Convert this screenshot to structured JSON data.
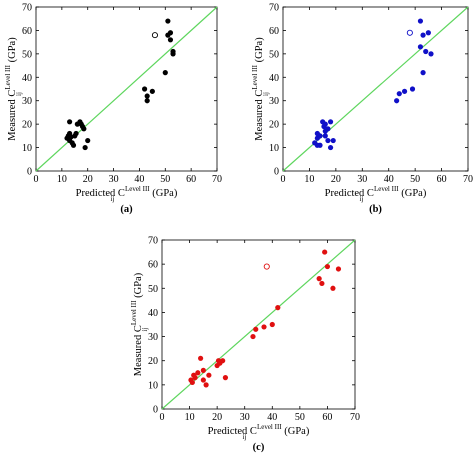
{
  "chart_data": [
    {
      "type": "scatter",
      "panel_label": "(a)",
      "xlabel": {
        "main": "Predicted C",
        "sub": "ij",
        "sup": "Level III",
        "unit": " (GPa)"
      },
      "ylabel": {
        "main": "Measured C",
        "sub": "ij",
        "sup": "Level III",
        "unit": " (GPa)"
      },
      "xlim": [
        0,
        70
      ],
      "ylim": [
        0,
        70
      ],
      "xticks": [
        "0",
        "10",
        "20",
        "30",
        "40",
        "50",
        "60",
        "70"
      ],
      "yticks": [
        "0",
        "10",
        "20",
        "30",
        "40",
        "50",
        "60",
        "70"
      ],
      "grid": false,
      "point_color": "#000000",
      "line_color": "#5ed65e",
      "points": [
        [
          12,
          14
        ],
        [
          12.5,
          15
        ],
        [
          13,
          13
        ],
        [
          13,
          16
        ],
        [
          13.5,
          14.5
        ],
        [
          14,
          12
        ],
        [
          14.5,
          11
        ],
        [
          15,
          15
        ],
        [
          15.5,
          16
        ],
        [
          16,
          20
        ],
        [
          17,
          21
        ],
        [
          17.5,
          20
        ],
        [
          18,
          19
        ],
        [
          18.5,
          18
        ],
        [
          19,
          10
        ],
        [
          20,
          13
        ],
        [
          13,
          21
        ],
        [
          43,
          30
        ],
        [
          43,
          32
        ],
        [
          42,
          35
        ],
        [
          45,
          34
        ],
        [
          50,
          42
        ],
        [
          51,
          64
        ],
        [
          51,
          58
        ],
        [
          52,
          56
        ],
        [
          52,
          59
        ],
        [
          53,
          50
        ],
        [
          53,
          51
        ]
      ],
      "outliers": [
        [
          46,
          58
        ]
      ],
      "identity_line": [
        [
          0,
          0
        ],
        [
          70,
          70
        ]
      ]
    },
    {
      "type": "scatter",
      "panel_label": "(b)",
      "xlabel": {
        "main": "Predicted C",
        "sub": "ij",
        "sup": "Level III",
        "unit": " (GPa)"
      },
      "ylabel": {
        "main": "Measured C",
        "sub": "ij",
        "sup": "Level III",
        "unit": " (GPa)"
      },
      "xlim": [
        0,
        70
      ],
      "ylim": [
        0,
        70
      ],
      "xticks": [
        "0",
        "10",
        "20",
        "30",
        "40",
        "50",
        "60",
        "70"
      ],
      "yticks": [
        "0",
        "10",
        "20",
        "30",
        "40",
        "50",
        "60",
        "70"
      ],
      "grid": false,
      "point_color": "#1010c8",
      "line_color": "#5ed65e",
      "points": [
        [
          12,
          12
        ],
        [
          13,
          14
        ],
        [
          13,
          16
        ],
        [
          14,
          15
        ],
        [
          14,
          11
        ],
        [
          15,
          21
        ],
        [
          15.5,
          19
        ],
        [
          16,
          20
        ],
        [
          16,
          15
        ],
        [
          17,
          18
        ],
        [
          17,
          13
        ],
        [
          18,
          21
        ],
        [
          18,
          10
        ],
        [
          19,
          13
        ],
        [
          13,
          11
        ],
        [
          16,
          17
        ],
        [
          43,
          30
        ],
        [
          44,
          33
        ],
        [
          46,
          34
        ],
        [
          49,
          35
        ],
        [
          52,
          64
        ],
        [
          52,
          53
        ],
        [
          53,
          58
        ],
        [
          53,
          42
        ],
        [
          54,
          51
        ],
        [
          55,
          59
        ],
        [
          56,
          50
        ]
      ],
      "outliers": [
        [
          48,
          59
        ]
      ],
      "identity_line": [
        [
          0,
          0
        ],
        [
          70,
          70
        ]
      ]
    },
    {
      "type": "scatter",
      "panel_label": "(c)",
      "xlabel": {
        "main": "Predicted C",
        "sub": "ij",
        "sup": "Level III",
        "unit": " (GPa)"
      },
      "ylabel": {
        "main": "Measured C",
        "sub": "ij",
        "sup": "Level III",
        "unit": " (GPa)"
      },
      "xlim": [
        0,
        70
      ],
      "ylim": [
        0,
        70
      ],
      "xticks": [
        "0",
        "10",
        "20",
        "30",
        "40",
        "50",
        "60",
        "70"
      ],
      "yticks": [
        "0",
        "10",
        "20",
        "30",
        "40",
        "50",
        "60",
        "70"
      ],
      "grid": false,
      "point_color": "#e01010",
      "line_color": "#5ed65e",
      "points": [
        [
          10.5,
          12
        ],
        [
          11,
          11
        ],
        [
          11.5,
          14
        ],
        [
          12,
          13
        ],
        [
          13,
          15
        ],
        [
          14,
          21
        ],
        [
          15,
          16
        ],
        [
          15,
          12
        ],
        [
          16,
          10
        ],
        [
          17,
          14
        ],
        [
          20,
          18
        ],
        [
          20.5,
          20
        ],
        [
          21,
          19
        ],
        [
          22,
          20
        ],
        [
          23,
          13
        ],
        [
          33,
          30
        ],
        [
          34,
          33
        ],
        [
          37,
          34
        ],
        [
          40,
          35
        ],
        [
          42,
          42
        ],
        [
          57,
          54
        ],
        [
          58,
          52
        ],
        [
          59,
          65
        ],
        [
          60,
          59
        ],
        [
          62,
          50
        ],
        [
          64,
          58
        ]
      ],
      "outliers": [
        [
          38,
          59
        ]
      ],
      "identity_line": [
        [
          0,
          0
        ],
        [
          70,
          70
        ]
      ]
    }
  ]
}
